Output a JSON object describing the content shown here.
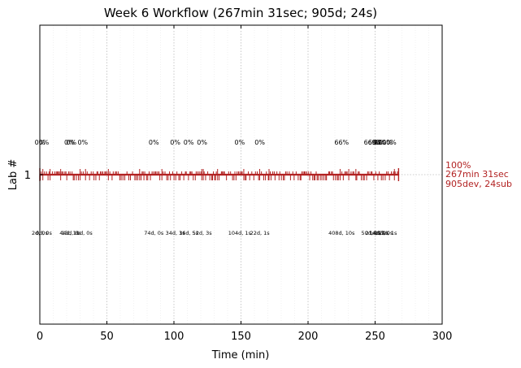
{
  "chart_data": {
    "type": "timeline",
    "title": "Week 6 Workflow (267min 31sec; 905d; 24s)",
    "xlabel": "Time (min)",
    "ylabel": "Lab #",
    "xlim": [
      0,
      300
    ],
    "xticks": [
      0,
      50,
      100,
      150,
      200,
      250,
      300
    ],
    "xtick_labels": [
      "0",
      "50",
      "100",
      "150",
      "200",
      "250",
      "300"
    ],
    "yticks": [
      1
    ],
    "ytick_labels": [
      "1"
    ],
    "grid": "x-dotted",
    "series_color": "#b22222",
    "lane": {
      "name": "1",
      "start": 0,
      "end": 267.5
    },
    "checkpoints": [
      {
        "x": 0,
        "pct": "0%",
        "sub": "2d, 0s"
      },
      {
        "x": 3,
        "pct": "0%",
        "sub": "0d, 0s"
      },
      {
        "x": 22,
        "pct": "0%",
        "sub": "44d, 1s"
      },
      {
        "x": 23.5,
        "pct": "0%",
        "sub": "13d, 0s"
      },
      {
        "x": 32,
        "pct": "0%",
        "sub": "11d, 0s"
      },
      {
        "x": 85,
        "pct": "0%",
        "sub": "74d, 0s"
      },
      {
        "x": 101,
        "pct": "0%",
        "sub": "34d, 3s"
      },
      {
        "x": 111,
        "pct": "0%",
        "sub": "16d, 5s"
      },
      {
        "x": 121,
        "pct": "0%",
        "sub": "52d, 3s"
      },
      {
        "x": 149,
        "pct": "0%",
        "sub": "104d, 1s"
      },
      {
        "x": 164,
        "pct": "0%",
        "sub": "22d, 1s"
      },
      {
        "x": 225,
        "pct": "66%",
        "sub": "408d, 10s"
      },
      {
        "x": 247,
        "pct": "66%",
        "sub": "50d, 1s"
      },
      {
        "x": 250,
        "pct": "66%",
        "sub": "21d, 2s"
      },
      {
        "x": 253,
        "pct": "96%",
        "sub": "14d, 0s"
      },
      {
        "x": 256,
        "pct": "100%",
        "sub": "40d, 0s"
      },
      {
        "x": 259,
        "pct": "100%",
        "sub": "17d, 1s"
      }
    ],
    "status": {
      "pct": "100%",
      "time": "267min 31sec",
      "summary": "905dev, 24sub"
    }
  }
}
